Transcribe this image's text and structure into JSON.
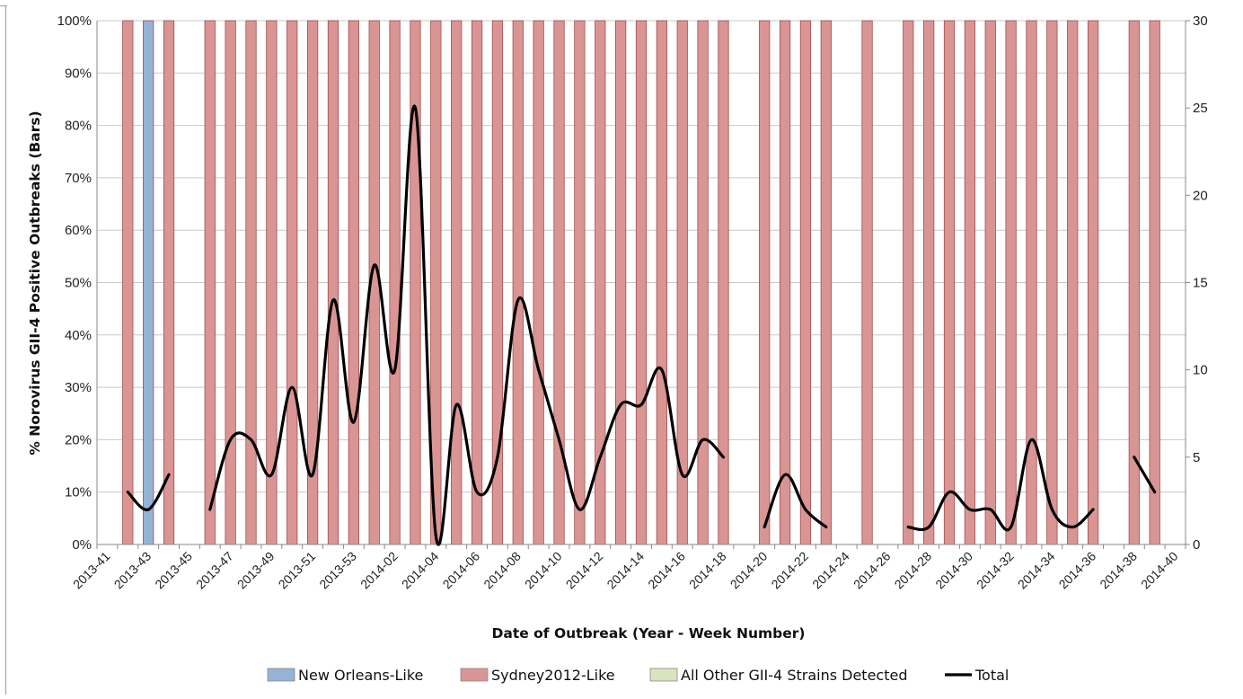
{
  "chart_data": {
    "type": "bar",
    "title": "",
    "xlabel": "Date of Outbreak (Year - Week Number)",
    "ylabel": "% Norovirus GII-4 Positive Outbreaks (Bars)",
    "y2label": "",
    "ylim": [
      0,
      100
    ],
    "y2lim": [
      0,
      30
    ],
    "y_ticks": [
      "0%",
      "10%",
      "20%",
      "30%",
      "40%",
      "50%",
      "60%",
      "70%",
      "80%",
      "90%",
      "100%"
    ],
    "y2_ticks": [
      "0",
      "5",
      "10",
      "15",
      "20",
      "25",
      "30"
    ],
    "grid": true,
    "legend_position": "bottom",
    "stacked": true,
    "categories": [
      "2013-41",
      "2013-42",
      "2013-43",
      "2013-44",
      "2013-45",
      "2013-46",
      "2013-47",
      "2013-48",
      "2013-49",
      "2013-50",
      "2013-51",
      "2013-52",
      "2013-53",
      "2014-01",
      "2014-02",
      "2014-03",
      "2014-04",
      "2014-05",
      "2014-06",
      "2014-07",
      "2014-08",
      "2014-09",
      "2014-10",
      "2014-11",
      "2014-12",
      "2014-13",
      "2014-14",
      "2014-15",
      "2014-16",
      "2014-17",
      "2014-18",
      "2014-19",
      "2014-20",
      "2014-21",
      "2014-22",
      "2014-23",
      "2014-24",
      "2014-25",
      "2014-26",
      "2014-27",
      "2014-28",
      "2014-29",
      "2014-30",
      "2014-31",
      "2014-32",
      "2014-33",
      "2014-34",
      "2014-35",
      "2014-36",
      "2014-37",
      "2014-38",
      "2014-39",
      "2014-40"
    ],
    "tick_labels": [
      "2013-41",
      "2013-43",
      "2013-45",
      "2013-47",
      "2013-49",
      "2013-51",
      "2013-53",
      "2014-02",
      "2014-04",
      "2014-06",
      "2014-08",
      "2014-10",
      "2014-12",
      "2014-14",
      "2014-16",
      "2014-18",
      "2014-20",
      "2014-22",
      "2014-24",
      "2014-26",
      "2014-28",
      "2014-30",
      "2014-32",
      "2014-34",
      "2014-36",
      "2014-38",
      "2014-40"
    ],
    "series": [
      {
        "name": "New Orleans-Like",
        "kind": "bar",
        "color": "#95b3d7",
        "values": [
          0,
          0,
          100,
          0,
          0,
          0,
          0,
          0,
          0,
          0,
          0,
          0,
          0,
          0,
          0,
          0,
          0,
          0,
          0,
          0,
          0,
          0,
          0,
          0,
          0,
          0,
          0,
          0,
          0,
          0,
          0,
          0,
          0,
          0,
          0,
          0,
          0,
          0,
          0,
          0,
          0,
          0,
          0,
          0,
          0,
          0,
          0,
          0,
          0,
          0,
          0,
          0,
          0
        ]
      },
      {
        "name": "Sydney2012-Like",
        "kind": "bar",
        "color": "#d99594",
        "values": [
          0,
          100,
          0,
          100,
          0,
          100,
          100,
          100,
          100,
          100,
          100,
          100,
          100,
          100,
          100,
          100,
          100,
          100,
          100,
          100,
          100,
          100,
          100,
          100,
          100,
          100,
          100,
          100,
          100,
          100,
          100,
          0,
          100,
          100,
          100,
          100,
          0,
          100,
          0,
          100,
          100,
          100,
          100,
          100,
          100,
          100,
          100,
          100,
          100,
          0,
          100,
          100,
          0
        ]
      },
      {
        "name": "All Other GII-4 Strains Detected",
        "kind": "bar",
        "color": "#d7e4bd",
        "values": [
          0,
          0,
          0,
          0,
          0,
          0,
          0,
          0,
          0,
          0,
          0,
          0,
          0,
          0,
          0,
          0,
          0,
          0,
          0,
          0,
          0,
          0,
          0,
          0,
          0,
          0,
          0,
          0,
          0,
          0,
          0,
          0,
          0,
          0,
          0,
          0,
          0,
          0,
          0,
          0,
          0,
          0,
          0,
          0,
          0,
          0,
          0,
          0,
          0,
          0,
          0,
          0,
          0
        ]
      },
      {
        "name": "Total",
        "kind": "line",
        "axis": "y2",
        "color": "#000000",
        "values": [
          null,
          3,
          2,
          4,
          null,
          2,
          6,
          6,
          4,
          9,
          4,
          14,
          7,
          16,
          10,
          25,
          0.5,
          8,
          3,
          5,
          14,
          10,
          6,
          2,
          5,
          8,
          8,
          10,
          4,
          6,
          5,
          null,
          1,
          4,
          2,
          1,
          null,
          null,
          null,
          1,
          1,
          3,
          2,
          2,
          1,
          6,
          2,
          1,
          2,
          null,
          5,
          3,
          null
        ]
      }
    ]
  }
}
